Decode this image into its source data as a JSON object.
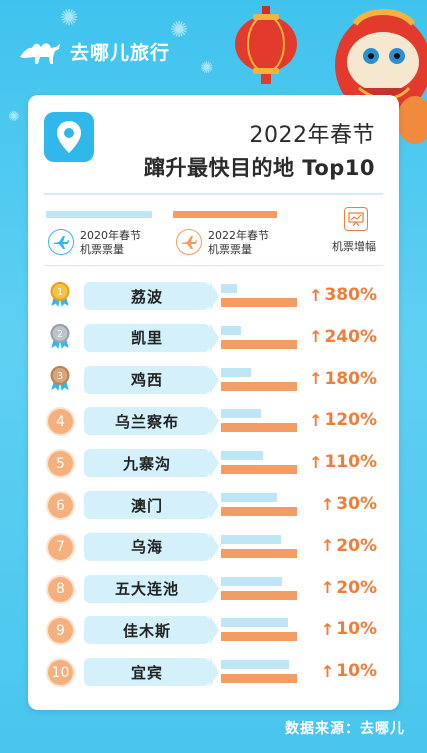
{
  "brand": {
    "name": "去哪儿旅行"
  },
  "title": {
    "line1": "2022年春节",
    "line2": "蹿升最快目的地 Top10"
  },
  "legend": {
    "s2020_line1": "2020年春节",
    "s2020_line2": "机票票量",
    "s2022_line1": "2022年春节",
    "s2022_line2": "机票票量",
    "growth_label": "机票增幅"
  },
  "colors": {
    "s2020": "#bfe6f7",
    "s2022": "#f39c63",
    "accent": "#f07d3a",
    "brand": "#2fb8e9"
  },
  "chart_data": {
    "type": "bar",
    "categories": [
      "荔波",
      "凯里",
      "鸡西",
      "乌兰察布",
      "九寨沟",
      "澳门",
      "乌海",
      "五大连池",
      "佳木斯",
      "宜宾"
    ],
    "ranks": [
      "1",
      "2",
      "3",
      "4",
      "5",
      "6",
      "7",
      "8",
      "9",
      "10"
    ],
    "series": [
      {
        "name": "2020年春节机票票量",
        "relative_length": [
          0.21,
          0.26,
          0.39,
          0.53,
          0.55,
          0.74,
          0.79,
          0.8,
          0.88,
          0.89
        ]
      },
      {
        "name": "2022年春节机票票量",
        "relative_length": [
          1.0,
          1.0,
          1.0,
          1.0,
          1.0,
          1.0,
          1.0,
          1.0,
          1.0,
          1.0
        ]
      }
    ],
    "growth": [
      "380%",
      "240%",
      "180%",
      "120%",
      "110%",
      "30%",
      "20%",
      "20%",
      "10%",
      "10%"
    ],
    "legend_position": "top"
  },
  "source": "数据来源：去哪儿"
}
